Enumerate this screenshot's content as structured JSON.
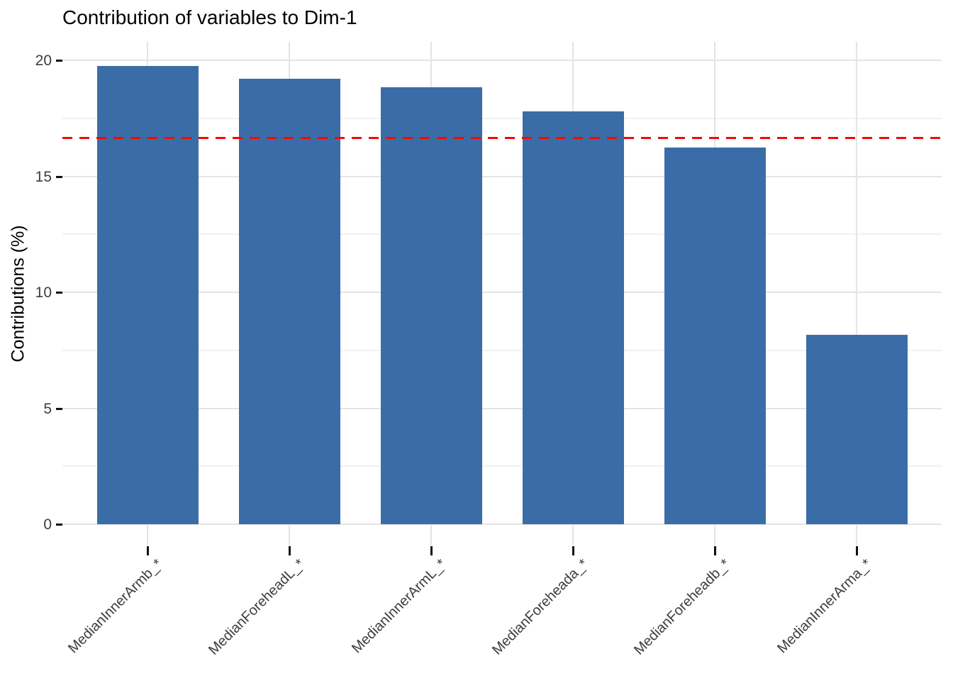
{
  "title": "Contribution of variables to Dim-1",
  "chart_data": {
    "type": "bar",
    "title": "Contribution of variables to Dim-1",
    "xlabel": "",
    "ylabel": "Contributions (%)",
    "categories": [
      "MedianInnerArmb_*",
      "MedianForeheadL_*",
      "MedianInnerArmL_*",
      "MedianForeheada_*",
      "MedianForeheadb_*",
      "MedianInnerArma_*"
    ],
    "values": [
      19.75,
      19.2,
      18.85,
      17.8,
      16.25,
      8.15
    ],
    "y_ticks": [
      0,
      5,
      10,
      15,
      20
    ],
    "y_minor_gridlines": [
      2.5,
      7.5,
      12.5,
      17.5
    ],
    "ylim": [
      -0.9,
      20.8
    ],
    "x_label_rotation_deg": -45,
    "grid": true,
    "legend_position": "none",
    "reference_line": {
      "value": 16.67,
      "style": "dashed",
      "color": "#fb0606"
    },
    "bar_color": "#3a6da7",
    "background_color": "#ffffff",
    "major_grid_color": "#e4e4e4",
    "minor_grid_color": "#f1f1f1",
    "axis_text_color": "#3d3d3d",
    "tick_mark_color": "#111111"
  }
}
